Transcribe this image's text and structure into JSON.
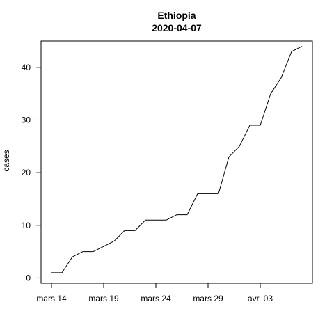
{
  "chart_data": {
    "type": "line",
    "title": "Ethiopia",
    "subtitle": "2020-04-07",
    "xlabel": "",
    "ylabel": "cases",
    "x": [
      "2020-03-14",
      "2020-03-15",
      "2020-03-16",
      "2020-03-17",
      "2020-03-18",
      "2020-03-19",
      "2020-03-20",
      "2020-03-21",
      "2020-03-22",
      "2020-03-23",
      "2020-03-24",
      "2020-03-25",
      "2020-03-26",
      "2020-03-27",
      "2020-03-28",
      "2020-03-29",
      "2020-03-30",
      "2020-03-31",
      "2020-04-01",
      "2020-04-02",
      "2020-04-03",
      "2020-04-04",
      "2020-04-05",
      "2020-04-06",
      "2020-04-07"
    ],
    "series": [
      {
        "values": [
          1,
          1,
          4,
          5,
          5,
          6,
          7,
          9,
          9,
          11,
          11,
          11,
          12,
          12,
          16,
          16,
          16,
          23,
          25,
          29,
          29,
          35,
          38,
          43,
          44
        ]
      }
    ],
    "xticks": [
      {
        "date": "2020-03-14",
        "label": "mars 14"
      },
      {
        "date": "2020-03-19",
        "label": "mars 19"
      },
      {
        "date": "2020-03-24",
        "label": "mars 24"
      },
      {
        "date": "2020-03-29",
        "label": "mars 29"
      },
      {
        "date": "2020-04-03",
        "label": "avr. 03"
      }
    ],
    "yticks": [
      0,
      10,
      20,
      30,
      40
    ],
    "xlim": [
      "2020-03-13",
      "2020-04-08"
    ],
    "ylim": [
      -1,
      45
    ],
    "grid": false,
    "line_color": "#000000"
  }
}
